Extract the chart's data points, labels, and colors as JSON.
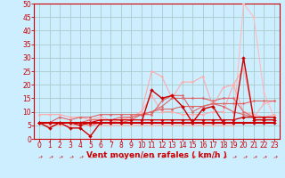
{
  "bg_color": "#cceeff",
  "grid_color": "#aacccc",
  "xlabel": "Vent moyen/en rafales ( km/h )",
  "xlabel_color": "#cc0000",
  "xlabel_fontsize": 6.5,
  "tick_color": "#cc0000",
  "tick_fontsize": 5.5,
  "ylim": [
    0,
    50
  ],
  "xlim": [
    -0.5,
    23.5
  ],
  "yticks": [
    0,
    5,
    10,
    15,
    20,
    25,
    30,
    35,
    40,
    45,
    50
  ],
  "xticks": [
    0,
    1,
    2,
    3,
    4,
    5,
    6,
    7,
    8,
    9,
    10,
    11,
    12,
    13,
    14,
    15,
    16,
    17,
    18,
    19,
    20,
    21,
    22,
    23
  ],
  "series": [
    {
      "x": [
        0,
        1,
        2,
        3,
        4,
        5,
        6,
        7,
        8,
        9,
        10,
        11,
        12,
        13,
        14,
        15,
        16,
        17,
        18,
        19,
        20,
        21,
        22,
        23
      ],
      "y": [
        6,
        5,
        5,
        5,
        5,
        5,
        5,
        5,
        5,
        5,
        5,
        5,
        5,
        5,
        5,
        5,
        5,
        5,
        5,
        5,
        50,
        45,
        17,
        8
      ],
      "color": "#ffbbbb",
      "lw": 0.8,
      "marker": "D",
      "ms": 1.5
    },
    {
      "x": [
        0,
        1,
        2,
        3,
        4,
        5,
        6,
        7,
        8,
        9,
        10,
        11,
        12,
        13,
        14,
        15,
        16,
        17,
        18,
        19,
        20,
        21,
        22,
        23
      ],
      "y": [
        9,
        9,
        9,
        8,
        8,
        7,
        8,
        7,
        7,
        8,
        10,
        16,
        10,
        10,
        9,
        9,
        9,
        10,
        10,
        20,
        26,
        8,
        13,
        14
      ],
      "color": "#ffaaaa",
      "lw": 0.8,
      "marker": "D",
      "ms": 1.5
    },
    {
      "x": [
        0,
        1,
        2,
        3,
        4,
        5,
        6,
        7,
        8,
        9,
        10,
        11,
        12,
        13,
        14,
        15,
        16,
        17,
        18,
        19,
        20,
        21,
        22,
        23
      ],
      "y": [
        6,
        6,
        6,
        6,
        6,
        6,
        6,
        6,
        7,
        8,
        10,
        25,
        23,
        15,
        21,
        21,
        23,
        12,
        19,
        20,
        10,
        9,
        8,
        9
      ],
      "color": "#ffaaaa",
      "lw": 0.8,
      "marker": "D",
      "ms": 1.5
    },
    {
      "x": [
        0,
        1,
        2,
        3,
        4,
        5,
        6,
        7,
        8,
        9,
        10,
        11,
        12,
        13,
        14,
        15,
        16,
        17,
        18,
        19,
        20,
        21,
        22,
        23
      ],
      "y": [
        6,
        6,
        6,
        6,
        6,
        5,
        6,
        6,
        6,
        7,
        9,
        9,
        14,
        16,
        16,
        10,
        12,
        13,
        12,
        10,
        9,
        8,
        8,
        8
      ],
      "color": "#dd6666",
      "lw": 0.8,
      "marker": "D",
      "ms": 1.5
    },
    {
      "x": [
        0,
        1,
        2,
        3,
        4,
        5,
        6,
        7,
        8,
        9,
        10,
        11,
        12,
        13,
        14,
        15,
        16,
        17,
        18,
        19,
        20,
        21,
        22,
        23
      ],
      "y": [
        6,
        6,
        6,
        6,
        6,
        7,
        7,
        7,
        8,
        8,
        9,
        10,
        12,
        15,
        15,
        15,
        15,
        14,
        15,
        15,
        10,
        8,
        8,
        8
      ],
      "color": "#dd6666",
      "lw": 0.8,
      "marker": "D",
      "ms": 1.5
    },
    {
      "x": [
        0,
        1,
        2,
        3,
        4,
        5,
        6,
        7,
        8,
        9,
        10,
        11,
        12,
        13,
        14,
        15,
        16,
        17,
        18,
        19,
        20,
        21,
        22,
        23
      ],
      "y": [
        6,
        6,
        8,
        7,
        8,
        8,
        9,
        9,
        9,
        9,
        9,
        10,
        11,
        11,
        12,
        12,
        12,
        13,
        13,
        13,
        13,
        14,
        14,
        14
      ],
      "color": "#dd6666",
      "lw": 0.8,
      "marker": "D",
      "ms": 1.5
    },
    {
      "x": [
        0,
        1,
        2,
        3,
        4,
        5,
        6,
        7,
        8,
        9,
        10,
        11,
        12,
        13,
        14,
        15,
        16,
        17,
        18,
        19,
        20,
        21,
        22,
        23
      ],
      "y": [
        6,
        6,
        6,
        6,
        5,
        6,
        7,
        7,
        7,
        7,
        7,
        7,
        7,
        7,
        7,
        7,
        7,
        7,
        7,
        7,
        8,
        8,
        8,
        8
      ],
      "color": "#cc0000",
      "lw": 0.9,
      "marker": "D",
      "ms": 1.8
    },
    {
      "x": [
        0,
        1,
        2,
        3,
        4,
        5,
        6,
        7,
        8,
        9,
        10,
        11,
        12,
        13,
        14,
        15,
        16,
        17,
        18,
        19,
        20,
        21,
        22,
        23
      ],
      "y": [
        6,
        4,
        6,
        4,
        4,
        1,
        6,
        6,
        6,
        6,
        6,
        18,
        15,
        16,
        12,
        6,
        11,
        12,
        6,
        6,
        30,
        7,
        7,
        7
      ],
      "color": "#cc0000",
      "lw": 1.0,
      "marker": "D",
      "ms": 2.0
    },
    {
      "x": [
        0,
        1,
        2,
        3,
        4,
        5,
        6,
        7,
        8,
        9,
        10,
        11,
        12,
        13,
        14,
        15,
        16,
        17,
        18,
        19,
        20,
        21,
        22,
        23
      ],
      "y": [
        6,
        6,
        6,
        6,
        6,
        6,
        6,
        6,
        6,
        6,
        6,
        6,
        6,
        6,
        6,
        6,
        6,
        6,
        6,
        6,
        6,
        6,
        6,
        6
      ],
      "color": "#cc0000",
      "lw": 1.5,
      "marker": "D",
      "ms": 2.0
    }
  ]
}
